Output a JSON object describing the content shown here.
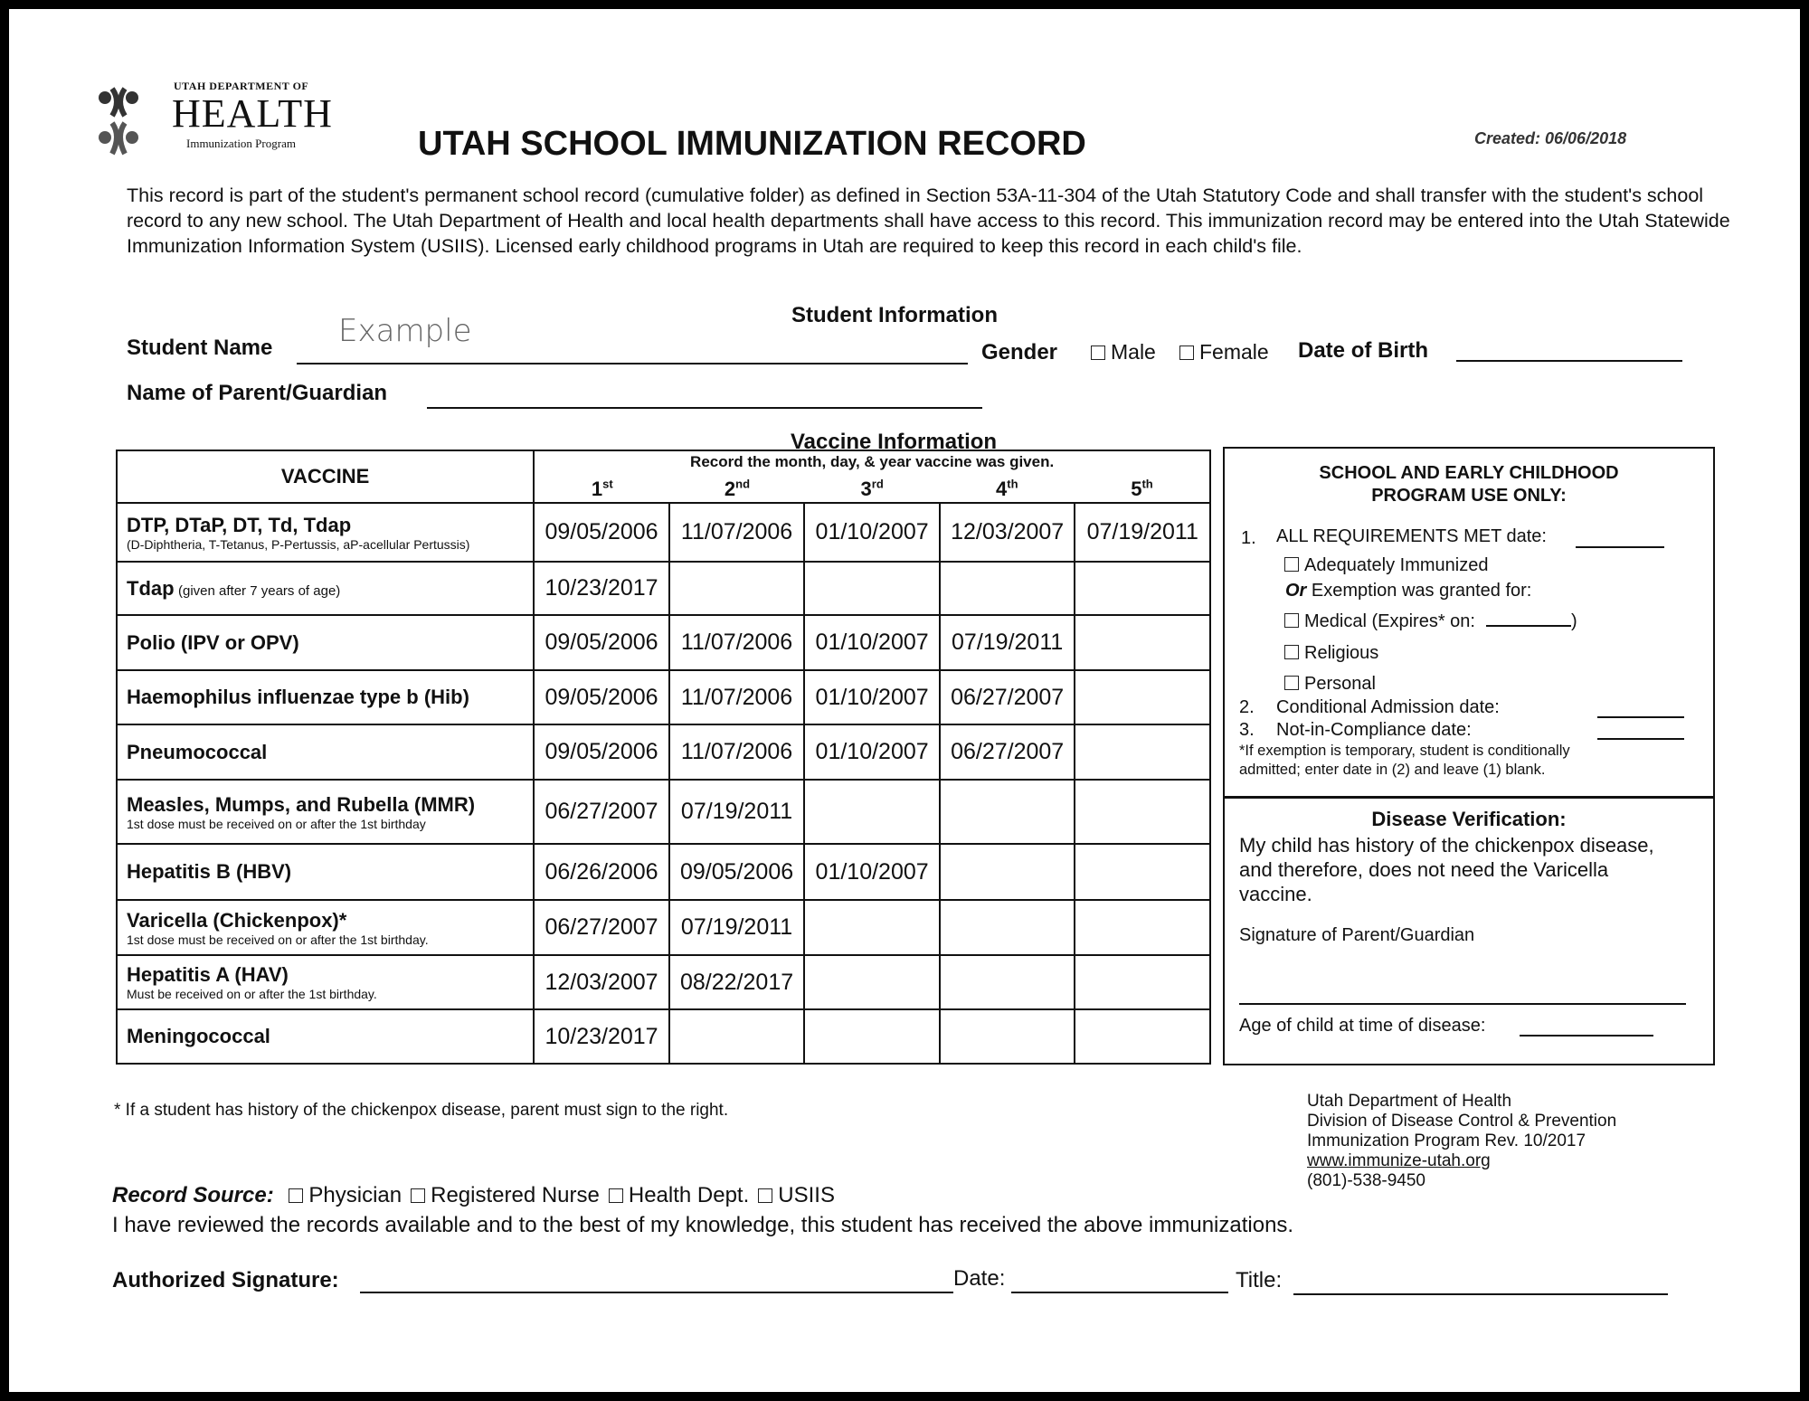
{
  "header": {
    "logo": {
      "line1": "UTAH DEPARTMENT OF",
      "line2": "HEALTH",
      "line3": "Immunization Program"
    },
    "title": "UTAH SCHOOL IMMUNIZATION RECORD",
    "created": "Created: 06/06/2018",
    "intro": "This record is part of the student's permanent school record (cumulative folder) as defined in Section 53A-11-304 of the Utah Statutory Code and shall transfer with the student's school record to any new school. The Utah Department of Health and local health departments shall have access to this record. This immunization record may be entered into the Utah Statewide Immunization Information System (USIIS). Licensed early childhood programs in Utah are required to keep this record in each child's file."
  },
  "student": {
    "section_title": "Student Information",
    "name_label": "Student Name",
    "name_value": "Example",
    "gender_label": "Gender",
    "male": "Male",
    "female": "Female",
    "dob_label": "Date of Birth",
    "parent_label": "Name of Parent/Guardian"
  },
  "vaccine": {
    "section_title": "Vaccine Information",
    "col_vaccine": "VACCINE",
    "col_instruction": "Record the month, day, & year vaccine was given.",
    "doses": [
      [
        "1",
        "st"
      ],
      [
        "2",
        "nd"
      ],
      [
        "3",
        "rd"
      ],
      [
        "4",
        "th"
      ],
      [
        "5",
        "th"
      ]
    ],
    "rows": [
      {
        "name": "DTP, DTaP, DT, Td, Tdap",
        "note": "",
        "sub": "(D-Diphtheria, T-Tetanus, P-Pertussis, aP-acellular Pertussis)",
        "dates": [
          "09/05/2006",
          "11/07/2006",
          "01/10/2007",
          "12/03/2007",
          "07/19/2011"
        ]
      },
      {
        "name": "Tdap",
        "note": "(given after 7 years of age)",
        "sub": "",
        "dates": [
          "10/23/2017",
          "",
          "",
          "",
          ""
        ]
      },
      {
        "name": "Polio (IPV or OPV)",
        "note": "",
        "sub": "",
        "dates": [
          "09/05/2006",
          "11/07/2006",
          "01/10/2007",
          "07/19/2011",
          ""
        ]
      },
      {
        "name": "Haemophilus influenzae type b (Hib)",
        "note": "",
        "sub": "",
        "dates": [
          "09/05/2006",
          "11/07/2006",
          "01/10/2007",
          "06/27/2007",
          ""
        ]
      },
      {
        "name": "Pneumococcal",
        "note": "",
        "sub": "",
        "dates": [
          "09/05/2006",
          "11/07/2006",
          "01/10/2007",
          "06/27/2007",
          ""
        ]
      },
      {
        "name": "Measles, Mumps, and Rubella (MMR)",
        "note": "",
        "sub": "1st dose must be received on or after the 1st birthday",
        "dates": [
          "06/27/2007",
          "07/19/2011",
          "",
          "",
          ""
        ]
      },
      {
        "name": "Hepatitis B (HBV)",
        "note": "",
        "sub": "",
        "dates": [
          "06/26/2006",
          "09/05/2006",
          "01/10/2007",
          "",
          ""
        ]
      },
      {
        "name": "Varicella (Chickenpox)*",
        "note": "",
        "sub": "1st dose must be received on or after the 1st birthday.",
        "dates": [
          "06/27/2007",
          "07/19/2011",
          "",
          "",
          ""
        ]
      },
      {
        "name": "Hepatitis A (HAV)",
        "note": "",
        "sub": "Must be received on or after the 1st birthday.",
        "dates": [
          "12/03/2007",
          "08/22/2017",
          "",
          "",
          ""
        ]
      },
      {
        "name": "Meningococcal",
        "note": "",
        "sub": "",
        "dates": [
          "10/23/2017",
          "",
          "",
          "",
          ""
        ]
      }
    ]
  },
  "program_box": {
    "title1": "SCHOOL AND EARLY CHILDHOOD",
    "title2": "PROGRAM USE ONLY:",
    "item1_num": "1.",
    "item1": "ALL REQUIREMENTS MET date:",
    "adequate": "Adequately Immunized",
    "or": "Or",
    "exemption": "Exemption was granted for:",
    "medical": "Medical (Expires* on:",
    "religious": "Religious",
    "personal": "Personal",
    "item2_num": "2.",
    "item2": "Conditional Admission date:",
    "item3_num": "3.",
    "item3": "Not-in-Compliance date:",
    "note1": "*If exemption is temporary, student is conditionally",
    "note2": "admitted; enter date in (2) and leave (1) blank."
  },
  "disease_box": {
    "title": "Disease Verification:",
    "text1": "My child has history of the chickenpox disease,",
    "text2": "and therefore, does not need the Varicella",
    "text3": "vaccine.",
    "signature": "Signature of Parent/Guardian",
    "age": "Age of child at time of disease:"
  },
  "footer": {
    "chickenpox_note": "* If a student has history of the chickenpox disease, parent must sign to the right.",
    "org1": "Utah Department of Health",
    "org2": "Division of Disease Control & Prevention",
    "org3": "Immunization Program Rev. 10/2017",
    "website": "www.immunize-utah.org",
    "phone": "(801)-538-9450",
    "record_source_label": "Record Source:",
    "sources": [
      "Physician",
      "Registered Nurse",
      "Health Dept.",
      "USIIS"
    ],
    "attestation": "I have reviewed the records available and to the best of my knowledge, this student has received the above immunizations.",
    "auth_sig": "Authorized Signature:",
    "date": "Date:",
    "title": "Title:"
  }
}
